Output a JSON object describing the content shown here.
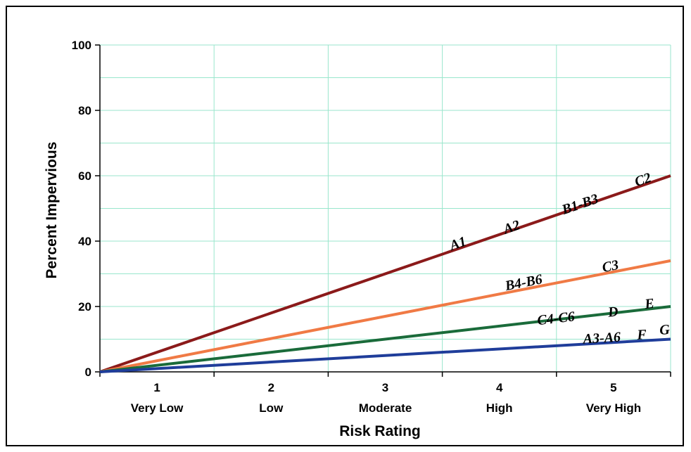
{
  "chart_data": {
    "type": "line",
    "title": "",
    "xlabel": "Risk Rating",
    "ylabel": "Percent Impervious",
    "ylim": [
      0,
      100
    ],
    "xlim": [
      0.5,
      5.5
    ],
    "yticks": [
      "0",
      "20",
      "40",
      "60",
      "80",
      "100"
    ],
    "x_categories": [
      {
        "num": "1",
        "label": "Very Low"
      },
      {
        "num": "2",
        "label": "Low"
      },
      {
        "num": "3",
        "label": "Moderate"
      },
      {
        "num": "4",
        "label": "High"
      },
      {
        "num": "5",
        "label": "Very High"
      }
    ],
    "grid": true,
    "grid_color": "#99e6cc",
    "series": [
      {
        "color": "#8b1a1a",
        "x": [
          0.5,
          5.5
        ],
        "y": [
          0,
          60
        ]
      },
      {
        "color": "#f07a45",
        "x": [
          0.5,
          5.5
        ],
        "y": [
          0,
          34
        ]
      },
      {
        "color": "#1a6b3a",
        "x": [
          0.5,
          5.5
        ],
        "y": [
          0,
          20
        ]
      },
      {
        "color": "#1f3d9a",
        "x": [
          0.5,
          5.5
        ],
        "y": [
          0,
          10
        ]
      }
    ],
    "annotations": [
      {
        "text": "A1",
        "x": 3.65,
        "y": 38
      },
      {
        "text": "A2",
        "x": 4.12,
        "y": 43
      },
      {
        "text": "B1-B3",
        "x": 4.72,
        "y": 50
      },
      {
        "text": "C2",
        "x": 5.27,
        "y": 57.5
      },
      {
        "text": "B4-B6",
        "x": 4.22,
        "y": 26
      },
      {
        "text": "C3",
        "x": 4.98,
        "y": 31
      },
      {
        "text": "C4-C6",
        "x": 4.5,
        "y": 15
      },
      {
        "text": "D",
        "x": 5.0,
        "y": 17
      },
      {
        "text": "E",
        "x": 5.32,
        "y": 19.5
      },
      {
        "text": "A3-A6",
        "x": 4.9,
        "y": 9
      },
      {
        "text": "F",
        "x": 5.25,
        "y": 10
      },
      {
        "text": "G",
        "x": 5.45,
        "y": 11.5
      }
    ]
  }
}
